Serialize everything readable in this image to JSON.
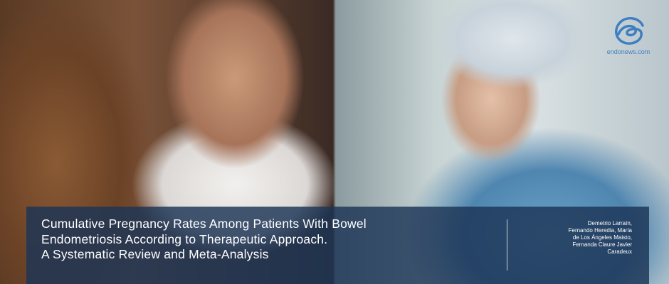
{
  "logo": {
    "text": "endonews.com",
    "color": "#3f7fbf"
  },
  "caption": {
    "title_lines": [
      "Cumulative Pregnancy Rates Among Patients With Bowel",
      "Endometriosis According to Therapeutic Approach.",
      "A Systematic Review and Meta-Analysis"
    ],
    "authors": [
      "Demetrio Larraín,",
      "Fernando Heredia, María",
      "de Los Ángeles Maisto,",
      "Fernanda Claure Javier",
      "Caradeux"
    ]
  }
}
